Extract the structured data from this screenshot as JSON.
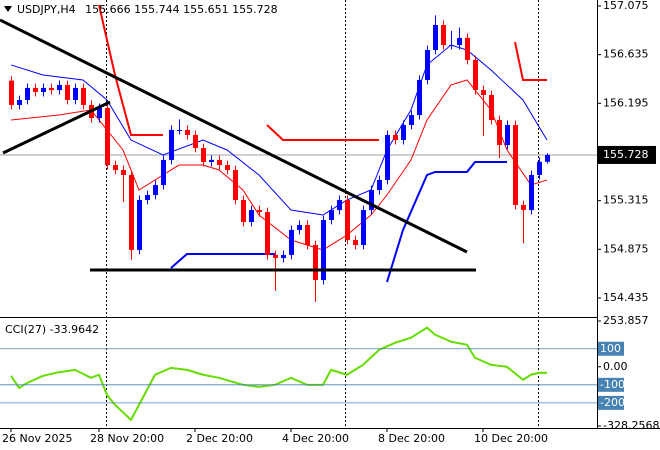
{
  "chart_data": [
    {
      "type": "candlestick",
      "title": "USDJPY,H4",
      "categories": [
        "26 Nov 2025",
        null,
        null,
        null,
        null,
        null,
        null,
        null,
        null,
        null,
        null,
        "28 Nov 20:00",
        null,
        null,
        null,
        null,
        null,
        null,
        null,
        null,
        null,
        null,
        null,
        "2 Dec 20:00",
        null,
        null,
        null,
        null,
        null,
        null,
        null,
        null,
        null,
        null,
        null,
        "4 Dec 20:00",
        null,
        null,
        null,
        null,
        null,
        null,
        null,
        null,
        null,
        null,
        null,
        "8 Dec 20:00",
        null,
        null,
        null,
        null,
        null,
        null,
        null,
        null,
        null,
        null,
        null,
        "10 Dec 20:00",
        null,
        null,
        null,
        null,
        null,
        null,
        null,
        null
      ],
      "open": [
        156.4,
        156.18,
        156.225,
        156.334,
        156.297,
        156.334,
        156.315,
        156.361,
        156.225,
        156.334,
        156.18,
        156.062,
        156.153,
        155.637,
        155.592,
        155.547,
        154.869,
        155.321,
        155.366,
        155.456,
        155.683,
        155.954,
        155.954,
        155.909,
        155.791,
        155.664,
        155.683,
        155.637,
        155.592,
        155.321,
        155.122,
        155.23,
        155.212,
        154.824,
        154.796,
        154.824,
        155.05,
        155.095,
        154.914,
        154.597,
        155.14,
        155.23,
        155.321,
        154.959,
        154.914,
        155.23,
        155.411,
        155.502,
        155.909,
        155.863,
        155.999,
        156.089,
        156.406,
        156.677,
        156.903,
        156.722,
        156.722,
        156.786,
        156.587,
        156.315,
        156.27,
        156.044,
        155.818,
        155.999,
        155.276,
        155.23,
        155.547,
        155.666
      ],
      "high": [
        156.44,
        156.265,
        156.374,
        156.374,
        156.374,
        156.374,
        156.401,
        156.401,
        156.374,
        156.374,
        156.22,
        156.193,
        156.193,
        155.677,
        155.632,
        155.587,
        155.361,
        155.406,
        155.496,
        155.723,
        155.994,
        156.05,
        155.994,
        155.949,
        155.831,
        155.723,
        155.723,
        155.677,
        155.632,
        155.361,
        155.27,
        155.27,
        155.252,
        154.864,
        154.864,
        155.09,
        155.135,
        155.135,
        154.954,
        155.18,
        155.27,
        155.361,
        155.361,
        154.999,
        155.27,
        155.451,
        155.542,
        155.949,
        155.949,
        156.039,
        156.129,
        156.446,
        156.717,
        156.99,
        156.943,
        156.85,
        156.88,
        156.826,
        156.627,
        156.355,
        156.31,
        156.084,
        156.039,
        156.039,
        155.316,
        155.587,
        155.706,
        155.744
      ],
      "low": [
        156.14,
        156.14,
        156.185,
        156.257,
        156.257,
        156.275,
        156.275,
        156.185,
        156.185,
        156.14,
        156.022,
        156.022,
        155.597,
        155.552,
        155.3,
        154.78,
        154.829,
        155.281,
        155.326,
        155.416,
        155.643,
        155.914,
        155.869,
        155.751,
        155.624,
        155.624,
        155.597,
        155.552,
        155.281,
        155.082,
        155.082,
        155.172,
        154.784,
        154.5,
        154.756,
        154.784,
        155.01,
        154.874,
        154.4,
        154.557,
        155.1,
        155.19,
        154.919,
        154.874,
        154.874,
        155.19,
        155.371,
        155.462,
        155.823,
        155.823,
        155.959,
        156.049,
        156.366,
        156.637,
        156.682,
        156.682,
        156.682,
        156.547,
        156.275,
        155.9,
        156.004,
        155.7,
        155.778,
        155.236,
        154.93,
        155.19,
        155.507,
        155.651
      ],
      "close": [
        156.18,
        156.225,
        156.334,
        156.297,
        156.334,
        156.315,
        156.361,
        156.225,
        156.334,
        156.18,
        156.062,
        156.153,
        155.637,
        155.592,
        155.547,
        154.869,
        155.321,
        155.366,
        155.456,
        155.683,
        155.954,
        155.954,
        155.909,
        155.791,
        155.664,
        155.683,
        155.637,
        155.592,
        155.321,
        155.122,
        155.23,
        155.212,
        154.824,
        154.796,
        154.824,
        155.05,
        155.095,
        154.914,
        154.597,
        155.14,
        155.23,
        155.321,
        154.959,
        154.914,
        155.23,
        155.411,
        155.502,
        155.909,
        155.863,
        155.999,
        156.089,
        156.406,
        156.677,
        156.903,
        156.722,
        156.722,
        156.786,
        156.587,
        156.315,
        156.27,
        156.044,
        155.818,
        155.999,
        155.276,
        155.23,
        155.547,
        155.666,
        155.728
      ],
      "up_color": "#0000ff",
      "down_color": "#ff0000",
      "series": [
        {
          "color": "#ff0000",
          "x": [
            0,
            6,
            10,
            14,
            16,
            19,
            21,
            24,
            26,
            29,
            31,
            35,
            39,
            42,
            45,
            47,
            50,
            52,
            55,
            57,
            60,
            62,
            65,
            67
          ],
          "values": [
            156.044,
            156.089,
            156.135,
            155.773,
            155.411,
            155.547,
            155.637,
            155.637,
            155.592,
            155.411,
            155.185,
            154.959,
            154.869,
            155.004,
            155.185,
            155.366,
            155.683,
            156.044,
            156.361,
            156.406,
            156.135,
            155.773,
            155.456,
            155.502
          ]
        },
        {
          "color": "#0000ff",
          "x": [
            0,
            4,
            9,
            12,
            15,
            19,
            24,
            27,
            31,
            35,
            39,
            42,
            45,
            47,
            50,
            52,
            55,
            57,
            60,
            64,
            67
          ],
          "values": [
            156.542,
            156.451,
            156.406,
            156.225,
            155.863,
            155.728,
            155.863,
            155.773,
            155.547,
            155.23,
            155.185,
            155.321,
            155.411,
            155.773,
            156.135,
            156.542,
            156.722,
            156.677,
            156.496,
            156.225,
            155.863
          ]
        }
      ],
      "stops": [
        {
          "color": "#ff0000",
          "x": [
            11,
            13,
            15,
            19,
            19,
            32,
            34,
            46,
            46,
            63,
            64,
            67
          ],
          "values": [
            157.084,
            156.451,
            155.909,
            155.909,
            null,
            155.999,
            155.863,
            155.863,
            null,
            156.749,
            156.406,
            156.406
          ]
        },
        {
          "color": "#0000ff",
          "x": [
            20,
            22,
            33,
            33,
            47,
            49,
            52,
            53,
            57,
            58,
            62
          ],
          "values": [
            154.706,
            154.833,
            154.833,
            null,
            154.579,
            155.05,
            155.547,
            155.574,
            155.574,
            155.664,
            155.664
          ]
        }
      ],
      "ylim": [
        154.272,
        157.129
      ],
      "yticks": [
        157.075,
        156.635,
        156.195,
        155.315,
        154.875,
        154.435
      ]
    },
    {
      "type": "line",
      "title": "CCI(27)",
      "color": "#66dd00",
      "x": [
        0,
        1,
        2,
        4,
        6,
        8,
        10,
        11,
        12,
        13,
        15,
        16,
        18,
        20,
        22,
        24,
        26,
        29,
        31,
        33,
        35,
        37,
        39,
        40,
        42,
        44,
        46,
        48,
        50,
        52,
        53,
        55,
        57,
        58,
        60,
        62,
        64,
        65,
        66,
        67
      ],
      "values": [
        -50,
        -117,
        -90,
        -50,
        -30,
        -17,
        -61,
        -44,
        -156,
        -211,
        -294,
        -211,
        -44,
        -6,
        -17,
        -44,
        -61,
        -100,
        -111,
        -100,
        -61,
        -100,
        -100,
        -17,
        -44,
        11,
        94,
        133,
        161,
        217,
        178,
        139,
        122,
        50,
        11,
        0,
        -72,
        -44,
        -33,
        -33.9642
      ],
      "levels": [
        100,
        -100,
        -200
      ],
      "level_color": "#4682b4",
      "ylim": [
        -328.2568,
        253.857
      ],
      "yticks": [
        253.857,
        {
          "value": 0,
          "label": "0.00"
        },
        -328.2568
      ]
    }
  ]
}
